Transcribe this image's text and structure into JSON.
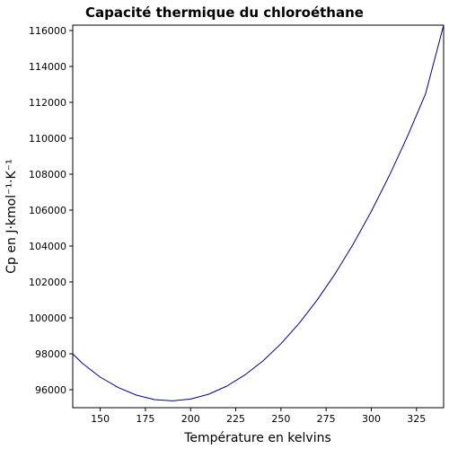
{
  "chart_data": {
    "type": "line",
    "title": "Capacité thermique du chloroéthane",
    "xlabel": "Température en kelvins",
    "ylabel": "Cp en J·kmol⁻¹·K⁻¹",
    "xlim": [
      134.8,
      340
    ],
    "ylim": [
      95000,
      116300
    ],
    "xticks": [
      150,
      175,
      200,
      225,
      250,
      275,
      300,
      325
    ],
    "yticks": [
      96000,
      98000,
      100000,
      102000,
      104000,
      106000,
      108000,
      110000,
      112000,
      114000,
      116000
    ],
    "grid": false,
    "series": [
      {
        "color": "#00008b",
        "x": [
          134.8,
          140,
          150,
          160,
          170,
          180,
          190,
          200,
          210,
          220,
          230,
          240,
          250,
          260,
          270,
          280,
          290,
          300,
          310,
          320,
          330,
          340
        ],
        "y": [
          98000,
          97480,
          96700,
          96120,
          95700,
          95450,
          95380,
          95480,
          95750,
          96200,
          96820,
          97600,
          98560,
          99690,
          100990,
          102460,
          104110,
          105930,
          107930,
          110110,
          112470,
          116300
        ]
      }
    ]
  }
}
